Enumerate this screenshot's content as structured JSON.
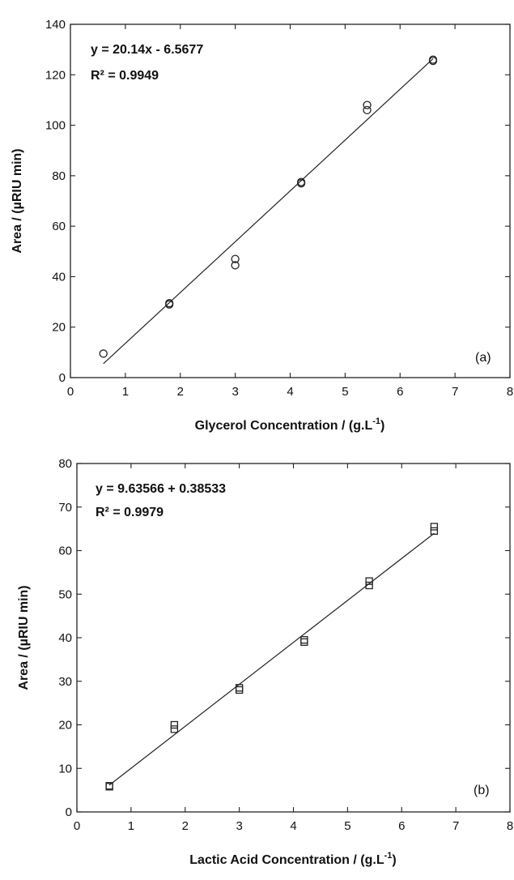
{
  "chart_data": [
    {
      "type": "scatter",
      "marker": "circle",
      "xlabel": "Glycerol Concentration / (g.L",
      "xlabel_sup": "-1",
      "xlabel_end": ")",
      "ylabel": "Area / (µRIU min)",
      "xlim": [
        0,
        8
      ],
      "ylim": [
        0,
        140
      ],
      "xticks": [
        0,
        1,
        2,
        3,
        4,
        5,
        6,
        7,
        8
      ],
      "yticks": [
        0,
        20,
        40,
        60,
        80,
        100,
        120,
        140
      ],
      "equation": "y = 20.14x - 6.5677",
      "r2": "R² = 0.9949",
      "panel_label": "(a)",
      "fit_line": {
        "slope": 20.14,
        "intercept": -6.5677,
        "x_range": [
          0.6,
          6.6
        ]
      },
      "series": [
        {
          "x": [
            0.6,
            1.8,
            1.8,
            3.0,
            3.0,
            4.2,
            4.2,
            5.4,
            5.4,
            6.6,
            6.6
          ],
          "y": [
            9.5,
            29.5,
            29.0,
            47.0,
            44.5,
            77.5,
            77.0,
            108.0,
            106.0,
            126.0,
            125.5
          ]
        }
      ]
    },
    {
      "type": "scatter",
      "marker": "square",
      "xlabel": "Lactic Acid Concentration / (g.L",
      "xlabel_sup": "-1",
      "xlabel_end": ")",
      "ylabel": "Area / (µRIU min)",
      "xlim": [
        0,
        8
      ],
      "ylim": [
        0,
        80
      ],
      "xticks": [
        0,
        1,
        2,
        3,
        4,
        5,
        6,
        7,
        8
      ],
      "yticks": [
        0,
        10,
        20,
        30,
        40,
        50,
        60,
        70,
        80
      ],
      "equation": "y = 9.63566 + 0.38533",
      "r2": "R² = 0.9979",
      "panel_label": "(b)",
      "fit_line": {
        "slope": 9.63566,
        "intercept": 0.38533,
        "x_range": [
          0.6,
          6.6
        ]
      },
      "series": [
        {
          "x": [
            0.6,
            0.6,
            1.8,
            1.8,
            3.0,
            3.0,
            4.2,
            4.2,
            5.4,
            5.4,
            6.6,
            6.6
          ],
          "y": [
            6.0,
            5.8,
            20.0,
            19.0,
            28.5,
            28.0,
            39.5,
            39.0,
            53.0,
            52.0,
            65.5,
            64.5
          ]
        }
      ]
    }
  ]
}
